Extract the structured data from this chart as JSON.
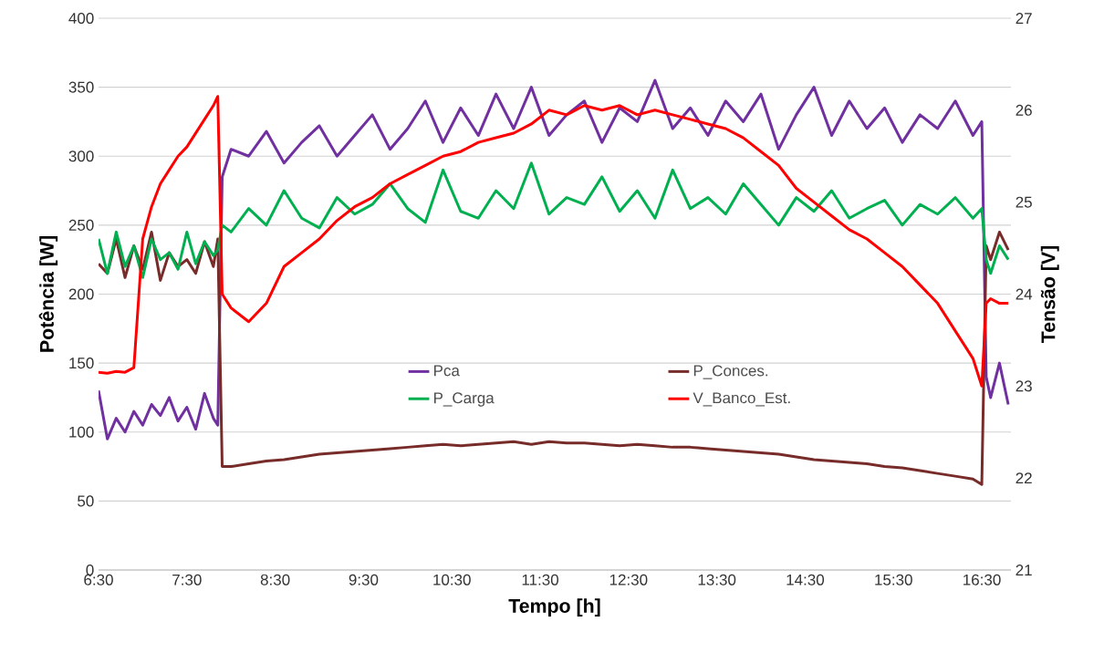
{
  "chart_data": {
    "type": "line",
    "xlabel": "Tempo [h]",
    "ylabel": "Potência [W]",
    "y2label": "Tensão [V]",
    "x": [
      6.5,
      6.6,
      6.7,
      6.8,
      6.9,
      7.0,
      7.1,
      7.2,
      7.3,
      7.4,
      7.5,
      7.6,
      7.7,
      7.8,
      7.85,
      7.9,
      8.0,
      8.2,
      8.4,
      8.6,
      8.8,
      9.0,
      9.2,
      9.4,
      9.6,
      9.8,
      10.0,
      10.2,
      10.4,
      10.6,
      10.8,
      11.0,
      11.2,
      11.4,
      11.6,
      11.8,
      12.0,
      12.2,
      12.4,
      12.6,
      12.8,
      13.0,
      13.2,
      13.4,
      13.6,
      13.8,
      14.0,
      14.2,
      14.4,
      14.6,
      14.8,
      15.0,
      15.2,
      15.4,
      15.6,
      15.8,
      16.0,
      16.2,
      16.4,
      16.5,
      16.55,
      16.6,
      16.7,
      16.8
    ],
    "series": [
      {
        "name": "Pca",
        "color": "#7030a0",
        "values": [
          130,
          95,
          110,
          100,
          115,
          105,
          120,
          112,
          125,
          108,
          118,
          102,
          128,
          110,
          105,
          285,
          305,
          300,
          318,
          295,
          310,
          322,
          300,
          315,
          330,
          305,
          320,
          340,
          310,
          335,
          315,
          345,
          320,
          350,
          315,
          330,
          340,
          310,
          335,
          325,
          355,
          320,
          335,
          315,
          340,
          325,
          345,
          305,
          330,
          350,
          315,
          340,
          320,
          335,
          310,
          330,
          320,
          340,
          315,
          325,
          140,
          125,
          150,
          120
        ]
      },
      {
        "name": "P_Conces.",
        "color": "#772c2a",
        "values": [
          222,
          215,
          240,
          212,
          235,
          218,
          245,
          210,
          230,
          220,
          225,
          215,
          238,
          220,
          240,
          75,
          75,
          77,
          79,
          80,
          82,
          84,
          85,
          86,
          87,
          88,
          89,
          90,
          91,
          90,
          91,
          92,
          93,
          91,
          93,
          92,
          92,
          91,
          90,
          91,
          90,
          89,
          89,
          88,
          87,
          86,
          85,
          84,
          82,
          80,
          79,
          78,
          77,
          75,
          74,
          72,
          70,
          68,
          66,
          62,
          235,
          225,
          245,
          232
        ]
      },
      {
        "name": "P_Carga",
        "color": "#00b050",
        "values": [
          240,
          215,
          245,
          220,
          235,
          212,
          240,
          225,
          230,
          218,
          245,
          222,
          238,
          228,
          232,
          250,
          245,
          262,
          250,
          275,
          255,
          248,
          270,
          258,
          265,
          280,
          262,
          252,
          290,
          260,
          255,
          275,
          262,
          295,
          258,
          270,
          265,
          285,
          260,
          275,
          255,
          290,
          262,
          270,
          258,
          280,
          265,
          250,
          270,
          260,
          275,
          255,
          262,
          268,
          250,
          265,
          258,
          270,
          255,
          262,
          225,
          215,
          235,
          225
        ]
      },
      {
        "name": "V_Banco_Est.",
        "color": "#ff0000",
        "axis": "y2",
        "values": [
          23.15,
          23.14,
          23.16,
          23.15,
          23.2,
          24.6,
          24.95,
          25.2,
          25.35,
          25.5,
          25.6,
          25.75,
          25.9,
          26.05,
          26.15,
          24.0,
          23.85,
          23.7,
          23.9,
          24.3,
          24.45,
          24.6,
          24.8,
          24.95,
          25.05,
          25.2,
          25.3,
          25.4,
          25.5,
          25.55,
          25.65,
          25.7,
          25.75,
          25.85,
          26.0,
          25.95,
          26.05,
          26.0,
          26.05,
          25.95,
          26.0,
          25.95,
          25.9,
          25.85,
          25.8,
          25.7,
          25.55,
          25.4,
          25.15,
          25.0,
          24.85,
          24.7,
          24.6,
          24.45,
          24.3,
          24.1,
          23.9,
          23.6,
          23.3,
          23.0,
          23.9,
          23.95,
          23.9,
          23.9
        ]
      }
    ],
    "xlim": [
      6.5,
      16.83
    ],
    "xticks": [
      {
        "value": 6.5,
        "label": "6:30"
      },
      {
        "value": 7.5,
        "label": "7:30"
      },
      {
        "value": 8.5,
        "label": "8:30"
      },
      {
        "value": 9.5,
        "label": "9:30"
      },
      {
        "value": 10.5,
        "label": "10:30"
      },
      {
        "value": 11.5,
        "label": "11:30"
      },
      {
        "value": 12.5,
        "label": "12:30"
      },
      {
        "value": 13.5,
        "label": "13:30"
      },
      {
        "value": 14.5,
        "label": "14:30"
      },
      {
        "value": 15.5,
        "label": "15:30"
      },
      {
        "value": 16.5,
        "label": "16:30"
      }
    ],
    "ylim": [
      0,
      400
    ],
    "yticks": [
      0,
      50,
      100,
      150,
      200,
      250,
      300,
      350,
      400
    ],
    "y2lim": [
      21,
      27
    ],
    "y2ticks": [
      21,
      22,
      23,
      24,
      25,
      26,
      27
    ],
    "grid": "y",
    "legend": "center",
    "marker": "none",
    "line_style": "solid"
  }
}
